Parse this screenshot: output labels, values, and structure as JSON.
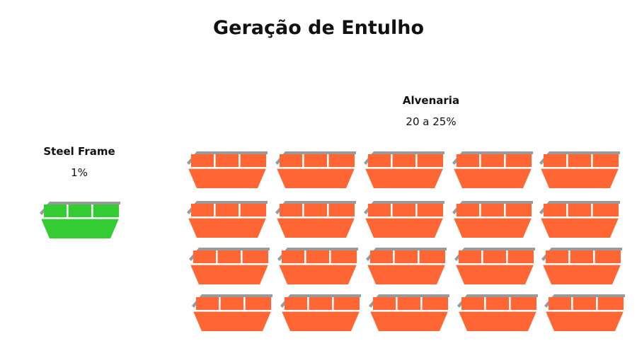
{
  "title": "Geração de Entulho",
  "colors": {
    "steel_frame": "#33cc33",
    "alvenaria": "#ff6633",
    "rail": "#9a9a9a"
  },
  "groups": [
    {
      "name": "Steel Frame",
      "value_text": "1%",
      "dumpster_count": 1,
      "color": "#33cc33"
    },
    {
      "name": "Alvenaria",
      "value_text": "20 a 25%",
      "dumpster_count": 20,
      "color": "#ff6633"
    }
  ],
  "icon": "dumpster-icon"
}
